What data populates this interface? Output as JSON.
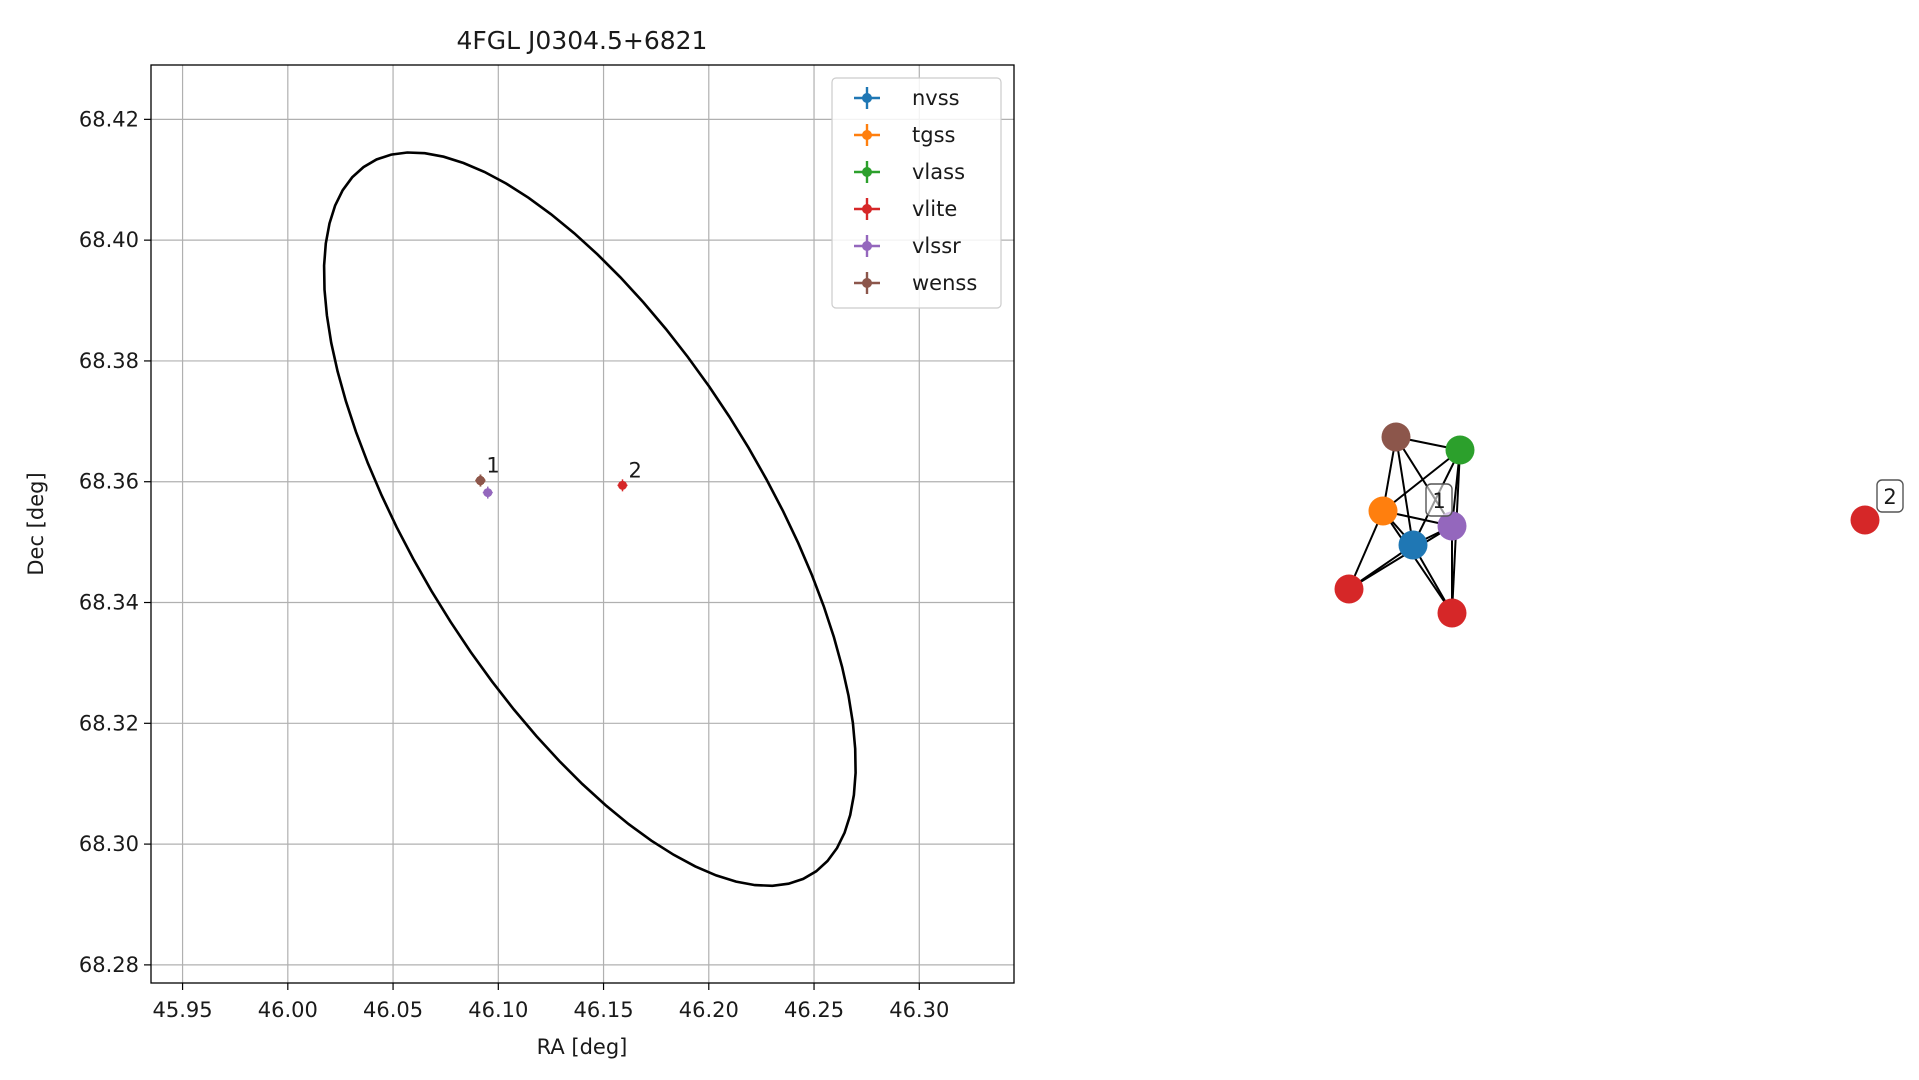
{
  "chart_data": [
    {
      "type": "scatter",
      "title": "4FGL J0304.5+6821",
      "xlabel": "RA [deg]",
      "ylabel": "Dec [deg]",
      "xlim": [
        45.935,
        46.345
      ],
      "ylim": [
        68.277,
        68.429
      ],
      "xticks": [
        45.95,
        46.0,
        46.05,
        46.1,
        46.15,
        46.2,
        46.25,
        46.3
      ],
      "xtick_labels": [
        "45.95",
        "46.00",
        "46.05",
        "46.10",
        "46.15",
        "46.20",
        "46.25",
        "46.30"
      ],
      "yticks": [
        68.28,
        68.3,
        68.32,
        68.34,
        68.36,
        68.38,
        68.4,
        68.42
      ],
      "ytick_labels": [
        "68.28",
        "68.30",
        "68.32",
        "68.34",
        "68.36",
        "68.38",
        "68.40",
        "68.42"
      ],
      "grid": true,
      "legend_position": "top-right",
      "series": [
        {
          "name": "nvss",
          "color": "#1f77b4",
          "points": [
            {
              "x": 46.0915,
              "y": 68.3602
            }
          ]
        },
        {
          "name": "tgss",
          "color": "#ff7f0e",
          "points": [
            {
              "x": 46.0915,
              "y": 68.3602
            }
          ]
        },
        {
          "name": "vlass",
          "color": "#2ca02c",
          "points": [
            {
              "x": 46.0915,
              "y": 68.3602
            }
          ]
        },
        {
          "name": "vlite",
          "color": "#d62728",
          "points": [
            {
              "x": 46.0915,
              "y": 68.3602
            },
            {
              "x": 46.159,
              "y": 68.3594
            }
          ]
        },
        {
          "name": "vlssr",
          "color": "#9467bd",
          "points": [
            {
              "x": 46.095,
              "y": 68.3582
            }
          ]
        },
        {
          "name": "wenss",
          "color": "#8c564b",
          "points": [
            {
              "x": 46.0915,
              "y": 68.3602
            }
          ]
        }
      ],
      "ellipse": {
        "center": {
          "x": 46.1435,
          "y": 68.3538
        },
        "semi_axes": [
          0.1335,
          0.0426
        ],
        "angle_deg": -20
      },
      "annotations": [
        {
          "text": "1",
          "x": 46.0915,
          "y": 68.3602
        },
        {
          "text": "2",
          "x": 46.159,
          "y": 68.3594
        }
      ]
    },
    {
      "type": "network-graph",
      "nodes": [
        {
          "id": "nvss",
          "color": "#1f77b4"
        },
        {
          "id": "tgss",
          "color": "#ff7f0e"
        },
        {
          "id": "vlass",
          "color": "#2ca02c"
        },
        {
          "id": "vlite-a",
          "color": "#d62728"
        },
        {
          "id": "vlite-b",
          "color": "#d62728"
        },
        {
          "id": "vlssr",
          "color": "#9467bd"
        },
        {
          "id": "wenss",
          "color": "#8c564b"
        },
        {
          "id": "vlite-c",
          "color": "#d62728"
        }
      ],
      "edges": [
        [
          "wenss",
          "vlass"
        ],
        [
          "wenss",
          "tgss"
        ],
        [
          "wenss",
          "nvss"
        ],
        [
          "wenss",
          "vlssr"
        ],
        [
          "vlass",
          "tgss"
        ],
        [
          "vlass",
          "nvss"
        ],
        [
          "vlass",
          "vlssr"
        ],
        [
          "vlass",
          "vlite-b"
        ],
        [
          "tgss",
          "nvss"
        ],
        [
          "tgss",
          "vlssr"
        ],
        [
          "tgss",
          "vlite-a"
        ],
        [
          "tgss",
          "vlite-b"
        ],
        [
          "nvss",
          "vlssr"
        ],
        [
          "nvss",
          "vlite-a"
        ],
        [
          "nvss",
          "vlite-b"
        ],
        [
          "vlssr",
          "vlite-a"
        ],
        [
          "vlssr",
          "vlite-b"
        ]
      ],
      "labels": [
        {
          "text": "1"
        },
        {
          "text": "2"
        }
      ]
    }
  ]
}
